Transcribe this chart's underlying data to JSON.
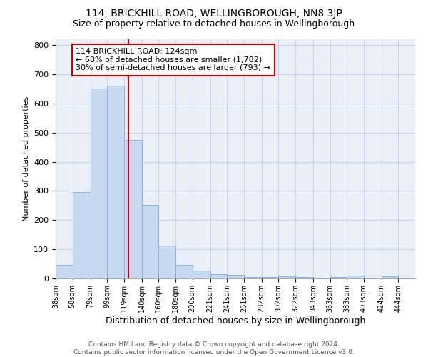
{
  "title": "114, BRICKHILL ROAD, WELLINGBOROUGH, NN8 3JP",
  "subtitle": "Size of property relative to detached houses in Wellingborough",
  "xlabel": "Distribution of detached houses by size in Wellingborough",
  "ylabel": "Number of detached properties",
  "bin_labels": [
    "38sqm",
    "58sqm",
    "79sqm",
    "99sqm",
    "119sqm",
    "140sqm",
    "160sqm",
    "180sqm",
    "200sqm",
    "221sqm",
    "241sqm",
    "261sqm",
    "282sqm",
    "302sqm",
    "322sqm",
    "343sqm",
    "363sqm",
    "383sqm",
    "403sqm",
    "424sqm",
    "444sqm"
  ],
  "bin_edges": [
    38,
    58,
    79,
    99,
    119,
    140,
    160,
    180,
    200,
    221,
    241,
    261,
    282,
    302,
    322,
    343,
    363,
    383,
    403,
    424,
    444
  ],
  "bar_heights": [
    47,
    295,
    650,
    660,
    475,
    252,
    112,
    47,
    27,
    15,
    13,
    5,
    5,
    8,
    5,
    0,
    5,
    9,
    0,
    8
  ],
  "bar_color": "#c6d9f1",
  "bar_edge_color": "#8ab4d8",
  "red_line_x": 124,
  "annotation_text": "114 BRICKHILL ROAD: 124sqm\n← 68% of detached houses are smaller (1,782)\n30% of semi-detached houses are larger (793) →",
  "annotation_box_color": "#ffffff",
  "annotation_box_edge_color": "#cc0000",
  "red_line_color": "#cc0000",
  "ylim": [
    0,
    820
  ],
  "yticks": [
    0,
    100,
    200,
    300,
    400,
    500,
    600,
    700,
    800
  ],
  "grid_color": "#c8d4e8",
  "background_color": "#eaeff8",
  "footer_text": "Contains HM Land Registry data © Crown copyright and database right 2024.\nContains public sector information licensed under the Open Government Licence v3.0.",
  "title_fontsize": 10,
  "subtitle_fontsize": 9,
  "xlabel_fontsize": 9,
  "ylabel_fontsize": 8,
  "footer_fontsize": 6.5
}
